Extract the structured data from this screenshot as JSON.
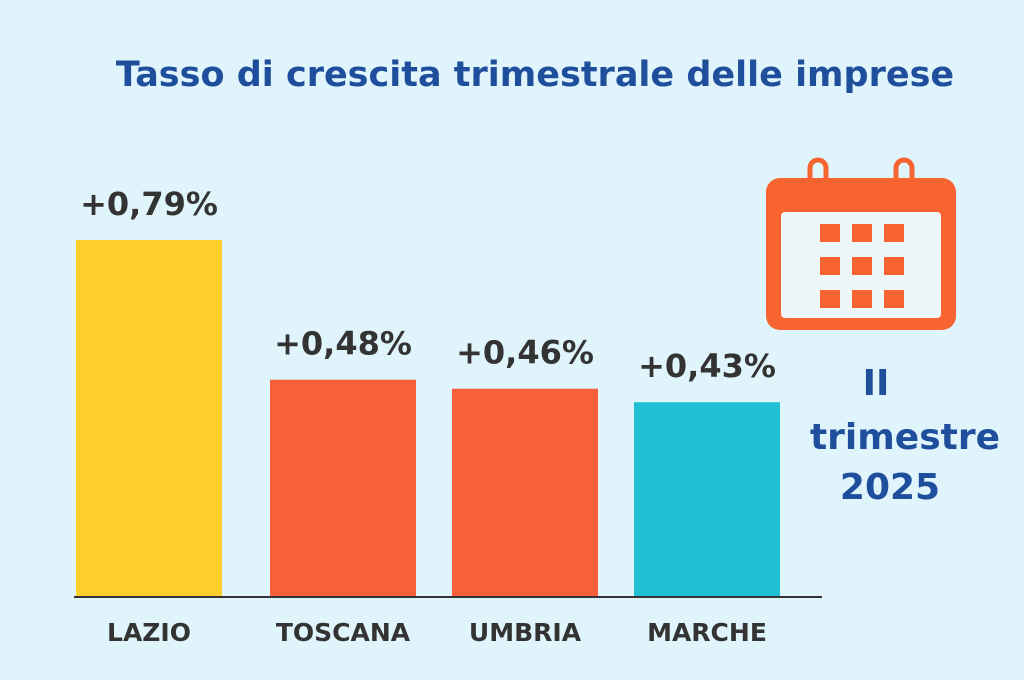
{
  "chart_data": {
    "type": "bar",
    "title": "Tasso di crescita trimestrale delle imprese",
    "categories": [
      "LAZIO",
      "TOSCANA",
      "UMBRIA",
      "MARCHE"
    ],
    "values": [
      0.79,
      0.48,
      0.46,
      0.43
    ],
    "value_labels": [
      "+0,79%",
      "+0,48%",
      "+0,46%",
      "+0,43%"
    ],
    "colors": [
      "#fdcf2b",
      "#f9603a",
      "#f9603a",
      "#1fc0d3"
    ],
    "annotation": [
      "II",
      "trimestre",
      "2025"
    ]
  }
}
